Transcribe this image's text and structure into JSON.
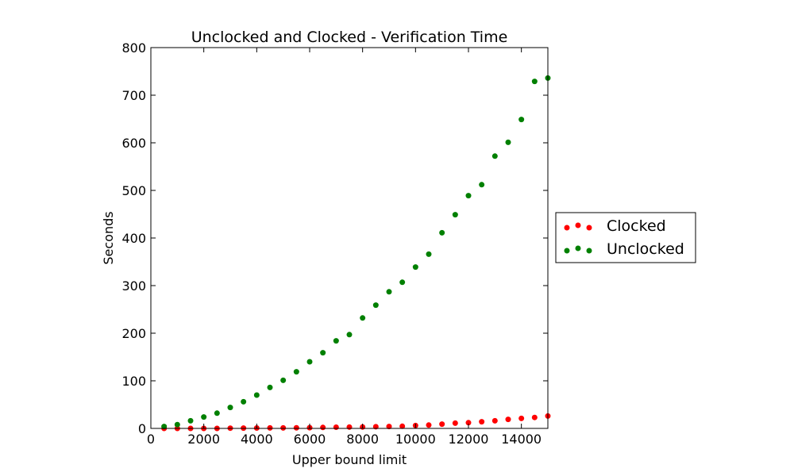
{
  "chart_data": {
    "type": "scatter",
    "title": "Unclocked and Clocked - Verification Time",
    "xlabel": "Upper bound limit",
    "ylabel": "Seconds",
    "xlim": [
      0,
      15000
    ],
    "ylim": [
      0,
      800
    ],
    "xticks": [
      0,
      2000,
      4000,
      6000,
      8000,
      10000,
      12000,
      14000
    ],
    "yticks": [
      0,
      100,
      200,
      300,
      400,
      500,
      600,
      700,
      800
    ],
    "grid": false,
    "legend_position": "outside-right",
    "series": [
      {
        "name": "Clocked",
        "color": "#ff0000",
        "points": [
          [
            500,
            0
          ],
          [
            1000,
            0
          ],
          [
            1500,
            0
          ],
          [
            2000,
            0
          ],
          [
            2500,
            0
          ],
          [
            3000,
            0.5
          ],
          [
            3500,
            0.6
          ],
          [
            4000,
            0.8
          ],
          [
            4500,
            1
          ],
          [
            5000,
            1
          ],
          [
            5500,
            1.2
          ],
          [
            6000,
            1.5
          ],
          [
            6500,
            2
          ],
          [
            7000,
            2.5
          ],
          [
            7500,
            2.8
          ],
          [
            8000,
            3
          ],
          [
            8500,
            3.5
          ],
          [
            9000,
            4
          ],
          [
            9500,
            4.5
          ],
          [
            10000,
            6
          ],
          [
            10500,
            7
          ],
          [
            11000,
            9
          ],
          [
            11500,
            11
          ],
          [
            12000,
            12
          ],
          [
            12500,
            14
          ],
          [
            13000,
            16
          ],
          [
            13500,
            19
          ],
          [
            14000,
            21
          ],
          [
            14500,
            23
          ],
          [
            15000,
            26
          ]
        ]
      },
      {
        "name": "Unclocked",
        "color": "#008000",
        "points": [
          [
            500,
            4
          ],
          [
            1000,
            8
          ],
          [
            1500,
            16
          ],
          [
            2000,
            24
          ],
          [
            2500,
            32
          ],
          [
            3000,
            44
          ],
          [
            3500,
            56
          ],
          [
            4000,
            70
          ],
          [
            4500,
            86
          ],
          [
            5000,
            101
          ],
          [
            5500,
            119
          ],
          [
            6000,
            140
          ],
          [
            6500,
            159
          ],
          [
            7000,
            184
          ],
          [
            7500,
            197
          ],
          [
            8000,
            232
          ],
          [
            8500,
            259
          ],
          [
            9000,
            287
          ],
          [
            9500,
            307
          ],
          [
            10000,
            339
          ],
          [
            10500,
            366
          ],
          [
            11000,
            411
          ],
          [
            11500,
            449
          ],
          [
            12000,
            489
          ],
          [
            12500,
            512
          ],
          [
            13000,
            572
          ],
          [
            13500,
            601
          ],
          [
            14000,
            649
          ],
          [
            14500,
            729
          ],
          [
            15000,
            736
          ]
        ]
      }
    ]
  }
}
